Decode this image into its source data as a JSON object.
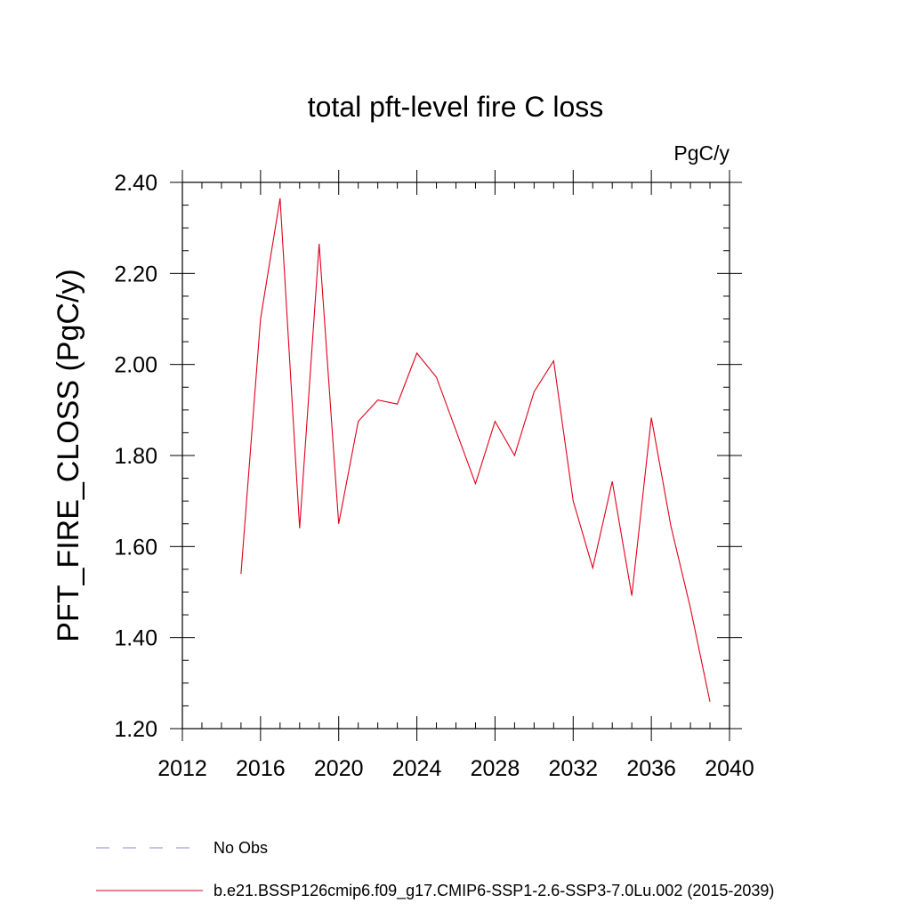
{
  "chart_data": {
    "type": "line",
    "title": "total pft-level fire C loss",
    "units": "PgC/y",
    "ylabel": "PFT_FIRE_CLOSS  (PgC/y)",
    "xlabel": "",
    "xlim": [
      2012,
      2040
    ],
    "ylim": [
      1.2,
      2.4
    ],
    "xticks": [
      "2012",
      "2016",
      "2020",
      "2024",
      "2028",
      "2032",
      "2036",
      "2040"
    ],
    "yticks": [
      "1.20",
      "1.40",
      "1.60",
      "1.80",
      "2.00",
      "2.20",
      "2.40"
    ],
    "x": [
      2015,
      2016,
      2017,
      2018,
      2019,
      2020,
      2021,
      2022,
      2023,
      2024,
      2025,
      2026,
      2027,
      2028,
      2029,
      2030,
      2031,
      2032,
      2033,
      2034,
      2035,
      2036,
      2037,
      2038,
      2039
    ],
    "series": [
      {
        "name": "b.e21.BSSP126cmip6.f09_g17.CMIP6-SSP1-2.6-SSP3-7.0Lu.002 (2015-2039)",
        "color": "#e0001a",
        "values": [
          1.54,
          2.1,
          2.365,
          1.64,
          2.265,
          1.65,
          1.875,
          1.922,
          1.913,
          2.025,
          1.972,
          1.855,
          1.738,
          1.875,
          1.8,
          1.94,
          2.008,
          1.7,
          1.553,
          1.743,
          1.492,
          1.883,
          1.645,
          1.465,
          1.259
        ]
      }
    ],
    "legend": [
      {
        "label": "No Obs",
        "style": "dashed",
        "color": "#8a8ad8"
      },
      {
        "label": "b.e21.BSSP126cmip6.f09_g17.CMIP6-SSP1-2.6-SSP3-7.0Lu.002 (2015-2039)",
        "style": "solid",
        "color": "#e0001a"
      }
    ],
    "legend_position": "bottom",
    "grid": false
  }
}
